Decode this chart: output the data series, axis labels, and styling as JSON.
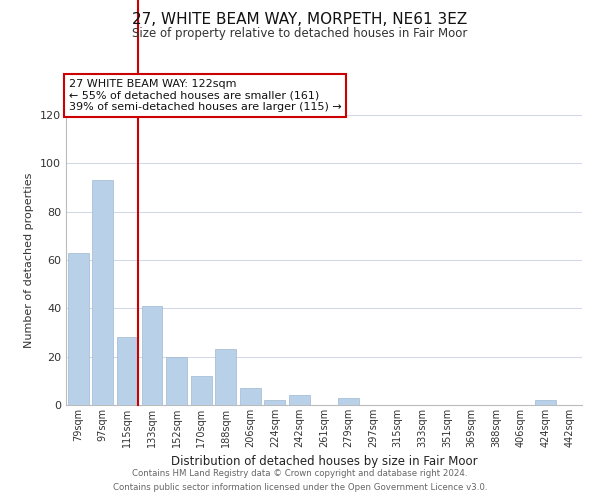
{
  "title": "27, WHITE BEAM WAY, MORPETH, NE61 3EZ",
  "subtitle": "Size of property relative to detached houses in Fair Moor",
  "xlabel": "Distribution of detached houses by size in Fair Moor",
  "ylabel": "Number of detached properties",
  "bar_labels": [
    "79sqm",
    "97sqm",
    "115sqm",
    "133sqm",
    "152sqm",
    "170sqm",
    "188sqm",
    "206sqm",
    "224sqm",
    "242sqm",
    "261sqm",
    "279sqm",
    "297sqm",
    "315sqm",
    "333sqm",
    "351sqm",
    "369sqm",
    "388sqm",
    "406sqm",
    "424sqm",
    "442sqm"
  ],
  "bar_values": [
    63,
    93,
    28,
    41,
    20,
    12,
    23,
    7,
    2,
    4,
    0,
    3,
    0,
    0,
    0,
    0,
    0,
    0,
    0,
    2,
    0
  ],
  "bar_color": "#b8d0e8",
  "highlight_bar_index": 2,
  "highlight_color": "#cc0000",
  "ylim": [
    0,
    120
  ],
  "yticks": [
    0,
    20,
    40,
    60,
    80,
    100,
    120
  ],
  "annotation_title": "27 WHITE BEAM WAY: 122sqm",
  "annotation_line1": "← 55% of detached houses are smaller (161)",
  "annotation_line2": "39% of semi-detached houses are larger (115) →",
  "footer_line1": "Contains HM Land Registry data © Crown copyright and database right 2024.",
  "footer_line2": "Contains public sector information licensed under the Open Government Licence v3.0.",
  "background_color": "#ffffff",
  "grid_color": "#d0d8e8"
}
